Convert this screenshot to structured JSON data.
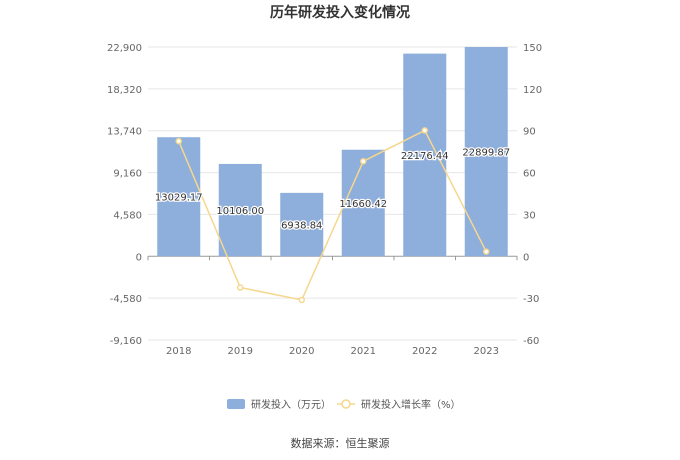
{
  "chart_data": {
    "type": "bar",
    "title": "历年研发投入变化情况",
    "categories": [
      "2018",
      "2019",
      "2020",
      "2021",
      "2022",
      "2023"
    ],
    "series": [
      {
        "name": "研发投入（万元）",
        "type": "bar",
        "axis": "left",
        "color": "#8eaedb",
        "values": [
          13029.17,
          10106.0,
          6938.84,
          11660.42,
          22176.44,
          22899.87
        ],
        "labels": [
          "13029.17",
          "10106.00",
          "6938.84",
          "11660.42",
          "22176.44",
          "22899.87"
        ]
      },
      {
        "name": "研发投入增长率（%）",
        "type": "line",
        "axis": "right",
        "color": "#f5d78e",
        "values": [
          82.5,
          -22.4,
          -31.3,
          68.1,
          90.2,
          3.3
        ]
      }
    ],
    "y_left": {
      "ylim": [
        -9160,
        22900
      ],
      "ticks": [
        22900,
        18320,
        13740,
        9160,
        4580,
        0,
        -4580,
        -9160
      ],
      "tick_labels": [
        "22,900",
        "18,320",
        "13,740",
        "9,160",
        "4,580",
        "0",
        "-4,580",
        "-9,160"
      ]
    },
    "y_right": {
      "ylim": [
        -60,
        150
      ],
      "ticks": [
        150,
        120,
        90,
        60,
        30,
        0,
        -30,
        -60
      ],
      "tick_labels": [
        "150",
        "120",
        "90",
        "60",
        "30",
        "0",
        "-30",
        "-60"
      ]
    },
    "grid": true,
    "legend_position": "bottom"
  },
  "source_text": "数据来源：恒生聚源"
}
